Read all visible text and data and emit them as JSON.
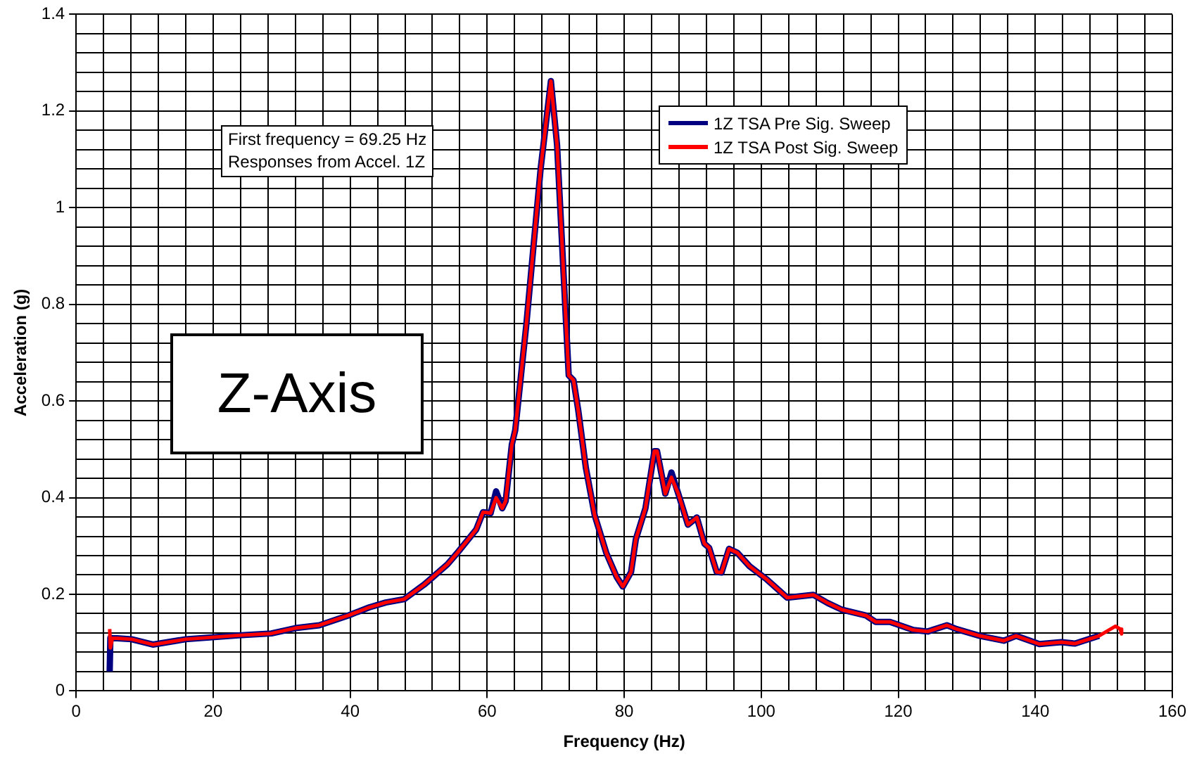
{
  "chart_data": {
    "type": "line",
    "xlabel": "Frequency (Hz)",
    "ylabel": "Acceleration (g)",
    "x": [
      4.9,
      5.0,
      5.3,
      6.0,
      8.1,
      11.2,
      16.0,
      23.7,
      28.5,
      32.0,
      35.5,
      39.7,
      42.8,
      45.2,
      47.9,
      50.8,
      52.1,
      54.2,
      55.6,
      58.4,
      59.4,
      60.5,
      61.3,
      62.2,
      62.7,
      63.6,
      64.1,
      65.7,
      67.8,
      69.3,
      70.2,
      71.6,
      71.9,
      72.6,
      73.3,
      74.4,
      75.7,
      77.4,
      78.9,
      79.8,
      81.0,
      81.7,
      83.1,
      84.4,
      84.8,
      86.0,
      86.9,
      87.9,
      89.3,
      90.6,
      91.7,
      92.4,
      93.5,
      94.2,
      95.3,
      96.5,
      98.3,
      100.7,
      103.8,
      107.6,
      109.7,
      111.8,
      115.3,
      116.7,
      118.8,
      122.2,
      124.3,
      127.1,
      128.5,
      131.9,
      135.4,
      137.2,
      140.6,
      143.8,
      145.8,
      149.3,
      151.7,
      152.4,
      152.6
    ],
    "series": [
      {
        "name": "1Z TSA Pre Sig. Sweep",
        "color": "#000080",
        "values": [
          0.04,
          0.11,
          0.109,
          0.109,
          0.107,
          0.096,
          0.107,
          0.115,
          0.119,
          0.13,
          0.136,
          0.156,
          0.173,
          0.183,
          0.19,
          0.22,
          0.236,
          0.262,
          0.285,
          0.334,
          0.37,
          0.368,
          0.413,
          0.378,
          0.393,
          0.51,
          0.54,
          0.756,
          1.08,
          1.262,
          1.13,
          0.737,
          0.653,
          0.643,
          0.58,
          0.462,
          0.363,
          0.285,
          0.236,
          0.216,
          0.246,
          0.314,
          0.378,
          0.496,
          0.496,
          0.408,
          0.452,
          0.408,
          0.344,
          0.359,
          0.305,
          0.296,
          0.246,
          0.245,
          0.294,
          0.286,
          0.258,
          0.232,
          0.193,
          0.199,
          0.182,
          0.168,
          0.156,
          0.143,
          0.143,
          0.126,
          0.123,
          0.136,
          0.128,
          0.114,
          0.104,
          0.114,
          0.097,
          0.101,
          0.098,
          0.114,
          null,
          null,
          null
        ]
      },
      {
        "name": "1Z TSA Post Sig. Sweep",
        "color": "#ff0000",
        "values": [
          0.128,
          0.089,
          0.109,
          0.109,
          0.107,
          0.096,
          0.107,
          0.115,
          0.119,
          0.13,
          0.136,
          0.156,
          0.173,
          0.183,
          0.19,
          0.22,
          0.236,
          0.262,
          0.285,
          0.334,
          0.37,
          0.368,
          0.4,
          0.378,
          0.393,
          0.51,
          0.54,
          0.756,
          1.08,
          1.262,
          1.13,
          0.737,
          0.653,
          0.643,
          0.58,
          0.462,
          0.363,
          0.285,
          0.236,
          0.216,
          0.246,
          0.314,
          0.378,
          0.496,
          0.496,
          0.408,
          0.442,
          0.408,
          0.344,
          0.359,
          0.305,
          0.296,
          0.246,
          0.245,
          0.294,
          0.286,
          0.258,
          0.232,
          0.193,
          0.199,
          0.182,
          0.168,
          0.156,
          0.143,
          0.143,
          0.126,
          0.123,
          0.136,
          0.128,
          0.114,
          0.104,
          0.114,
          0.097,
          0.101,
          0.098,
          0.114,
          0.134,
          0.128,
          0.118
        ]
      }
    ],
    "xlim": [
      0,
      160
    ],
    "xticks": [
      0,
      {
        "value": 4,
        "label": null
      },
      {
        "value": 8,
        "label": null
      },
      {
        "value": 12,
        "label": null
      },
      {
        "value": 16,
        "label": null
      },
      20,
      {
        "value": 24,
        "label": null
      },
      {
        "value": 28,
        "label": null
      },
      {
        "value": 32,
        "label": null
      },
      {
        "value": 36,
        "label": null
      },
      40,
      {
        "value": 44,
        "label": null
      },
      {
        "value": 48,
        "label": null
      },
      {
        "value": 52,
        "label": null
      },
      {
        "value": 56,
        "label": null
      },
      60,
      {
        "value": 64,
        "label": null
      },
      {
        "value": 68,
        "label": null
      },
      {
        "value": 72,
        "label": null
      },
      {
        "value": 76,
        "label": null
      },
      80,
      {
        "value": 84,
        "label": null
      },
      {
        "value": 88,
        "label": null
      },
      {
        "value": 92,
        "label": null
      },
      {
        "value": 96,
        "label": null
      },
      100,
      {
        "value": 104,
        "label": null
      },
      {
        "value": 108,
        "label": null
      },
      {
        "value": 112,
        "label": null
      },
      {
        "value": 116,
        "label": null
      },
      120,
      {
        "value": 124,
        "label": null
      },
      {
        "value": 128,
        "label": null
      },
      {
        "value": 132,
        "label": null
      },
      {
        "value": 136,
        "label": null
      },
      140,
      {
        "value": 144,
        "label": null
      },
      {
        "value": 148,
        "label": null
      },
      {
        "value": 152,
        "label": null
      },
      {
        "value": 156,
        "label": null
      },
      160
    ],
    "ylim": [
      0,
      1.4
    ],
    "yticks": [
      0,
      {
        "value": 0.04,
        "label": null
      },
      {
        "value": 0.08,
        "label": null
      },
      {
        "value": 0.12,
        "label": null
      },
      {
        "value": 0.16,
        "label": null
      },
      0.2,
      {
        "value": 0.24,
        "label": null
      },
      {
        "value": 0.28,
        "label": null
      },
      {
        "value": 0.32,
        "label": null
      },
      {
        "value": 0.36,
        "label": null
      },
      0.4,
      {
        "value": 0.44,
        "label": null
      },
      {
        "value": 0.48,
        "label": null
      },
      {
        "value": 0.52,
        "label": null
      },
      {
        "value": 0.56,
        "label": null
      },
      0.6,
      {
        "value": 0.64,
        "label": null
      },
      {
        "value": 0.68,
        "label": null
      },
      {
        "value": 0.72,
        "label": null
      },
      {
        "value": 0.76,
        "label": null
      },
      0.8,
      {
        "value": 0.84,
        "label": null
      },
      {
        "value": 0.88,
        "label": null
      },
      {
        "value": 0.92,
        "label": null
      },
      {
        "value": 0.96,
        "label": null
      },
      1,
      {
        "value": 1.04,
        "label": null
      },
      {
        "value": 1.08,
        "label": null
      },
      {
        "value": 1.12,
        "label": null
      },
      {
        "value": 1.16,
        "label": null
      },
      1.2,
      {
        "value": 1.24,
        "label": null
      },
      {
        "value": 1.28,
        "label": null
      },
      {
        "value": 1.32,
        "label": null
      },
      {
        "value": 1.36,
        "label": null
      },
      1.4
    ],
    "grid": true,
    "legend": "top right",
    "marker": "none",
    "line_style": "solid",
    "annotations": [
      "First frequency = 69.25 Hz\nResponses from Accel. 1Z",
      "Z-Axis"
    ]
  }
}
